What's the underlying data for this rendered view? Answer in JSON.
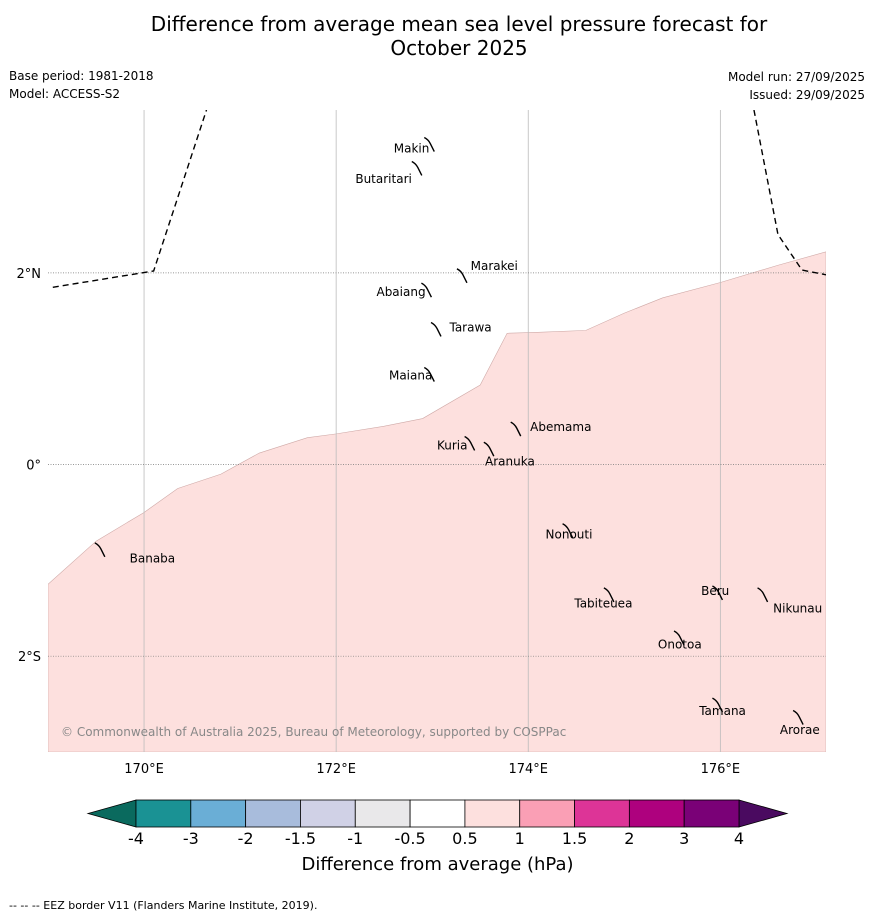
{
  "title": {
    "line1": "Difference from average mean sea level pressure forecast for",
    "line2": "October 2025"
  },
  "meta": {
    "base_period": "Base period: 1981-2018",
    "model": "Model: ACCESS-S2",
    "model_run": "Model run: 27/09/2025",
    "issued": "Issued: 29/09/2025"
  },
  "map": {
    "extent": {
      "lon": [
        169.0,
        177.1
      ],
      "lat": [
        -3.0,
        3.7
      ]
    },
    "lon_ticks": [
      {
        "value": 170,
        "label": "170°E"
      },
      {
        "value": 172,
        "label": "172°E"
      },
      {
        "value": 174,
        "label": "174°E"
      },
      {
        "value": 176,
        "label": "176°E"
      }
    ],
    "lat_ticks": [
      {
        "value": 2,
        "label": "2°N"
      },
      {
        "value": 0,
        "label": "0°"
      },
      {
        "value": -2,
        "label": "2°S"
      }
    ],
    "anomaly_region": {
      "category": "0.5 to 1",
      "color": "#fde0de",
      "boundary": [
        [
          169.0,
          -1.25
        ],
        [
          169.5,
          -0.8
        ],
        [
          170.0,
          -0.5
        ],
        [
          170.35,
          -0.25
        ],
        [
          170.8,
          -0.1
        ],
        [
          171.2,
          0.12
        ],
        [
          171.7,
          0.28
        ],
        [
          172.0,
          0.32
        ],
        [
          172.5,
          0.4
        ],
        [
          172.9,
          0.48
        ],
        [
          173.5,
          0.83
        ],
        [
          173.78,
          1.37
        ],
        [
          174.1,
          1.38
        ],
        [
          174.6,
          1.4
        ],
        [
          175.0,
          1.58
        ],
        [
          175.4,
          1.74
        ],
        [
          176.0,
          1.9
        ],
        [
          176.6,
          2.08
        ],
        [
          177.1,
          2.22
        ]
      ]
    },
    "eez_border": {
      "segments": [
        [
          [
            169.05,
            1.85
          ],
          [
            170.1,
            2.02
          ],
          [
            170.65,
            3.7
          ]
        ],
        [
          [
            176.35,
            3.7
          ],
          [
            176.6,
            2.4
          ],
          [
            176.85,
            2.03
          ],
          [
            177.1,
            1.98
          ]
        ]
      ]
    },
    "islands": [
      {
        "name": "Makin",
        "lon": 172.98,
        "lat": 3.35,
        "label_lon": 172.6,
        "label_lat": 3.3
      },
      {
        "name": "Butaritari",
        "lon": 172.85,
        "lat": 3.1,
        "label_lon": 172.2,
        "label_lat": 2.98
      },
      {
        "name": "Marakei",
        "lon": 173.32,
        "lat": 1.98,
        "label_lon": 173.4,
        "label_lat": 2.07
      },
      {
        "name": "Abaiang",
        "lon": 172.95,
        "lat": 1.83,
        "label_lon": 172.42,
        "label_lat": 1.8
      },
      {
        "name": "Tarawa",
        "lon": 173.05,
        "lat": 1.42,
        "label_lon": 173.18,
        "label_lat": 1.43
      },
      {
        "name": "Maiana",
        "lon": 172.98,
        "lat": 0.95,
        "label_lon": 172.55,
        "label_lat": 0.93
      },
      {
        "name": "Abemama",
        "lon": 173.88,
        "lat": 0.38,
        "label_lon": 174.02,
        "label_lat": 0.39
      },
      {
        "name": "Kuria",
        "lon": 173.4,
        "lat": 0.23,
        "label_lon": 173.05,
        "label_lat": 0.2
      },
      {
        "name": "Aranuka",
        "lon": 173.6,
        "lat": 0.17,
        "label_lon": 173.55,
        "label_lat": 0.03
      },
      {
        "name": "Nonouti",
        "lon": 174.42,
        "lat": -0.68,
        "label_lon": 174.18,
        "label_lat": -0.73
      },
      {
        "name": "Banaba",
        "lon": 169.55,
        "lat": -0.88,
        "label_lon": 169.85,
        "label_lat": -0.98
      },
      {
        "name": "Tabiteuea",
        "lon": 174.85,
        "lat": -1.35,
        "label_lon": 174.48,
        "label_lat": -1.45
      },
      {
        "name": "Beru",
        "lon": 175.98,
        "lat": -1.33,
        "label_lon": 175.8,
        "label_lat": -1.32
      },
      {
        "name": "Nikunau",
        "lon": 176.45,
        "lat": -1.35,
        "label_lon": 176.55,
        "label_lat": -1.5
      },
      {
        "name": "Onotoa",
        "lon": 175.58,
        "lat": -1.8,
        "label_lon": 175.35,
        "label_lat": -1.88
      },
      {
        "name": "Tamana",
        "lon": 175.98,
        "lat": -2.5,
        "label_lon": 175.78,
        "label_lat": -2.57
      },
      {
        "name": "Arorae",
        "lon": 176.82,
        "lat": -2.63,
        "label_lon": 176.62,
        "label_lat": -2.77
      }
    ],
    "copyright": "© Commonwealth of Australia 2025, Bureau of Meteorology, supported by COSPPac"
  },
  "colorbar": {
    "label": "Difference from average (hPa)",
    "tick_labels": [
      "-4",
      "-3",
      "-2",
      "-1.5",
      "-1",
      "-0.5",
      "0.5",
      "1",
      "1.5",
      "2",
      "3",
      "4"
    ],
    "under_color": "#0a6a5e",
    "over_color": "#4a0a60",
    "colors": [
      "#1a9294",
      "#6aaed6",
      "#a8bcdc",
      "#d0d1e6",
      "#e9e8ea",
      "#ffffff",
      "#fde0de",
      "#fa9fb5",
      "#dd3497",
      "#ae017e",
      "#7a0177"
    ]
  },
  "footer": "--  --  -- EEZ border V11 (Flanders Marine Institute, 2019)."
}
